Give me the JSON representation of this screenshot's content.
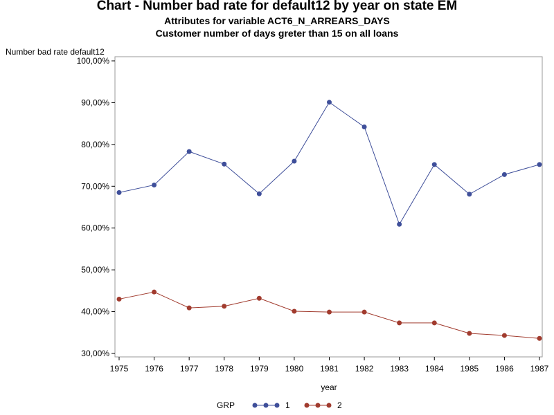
{
  "chart_data": {
    "type": "line",
    "title": "Chart - Number bad rate for default12 by year on state EM",
    "subtitle_1": "Attributes for variable ACT6_N_ARREARS_DAYS",
    "subtitle_2": "Customer number of days greter than 15 on all loans",
    "ylabel": "Number bad rate default12",
    "xlabel": "year",
    "x": [
      1975,
      1976,
      1977,
      1978,
      1979,
      1980,
      1981,
      1982,
      1983,
      1984,
      1985,
      1986,
      1987
    ],
    "xlim": [
      1975,
      1987
    ],
    "ylim": [
      30,
      100
    ],
    "y_ticks": [
      30,
      40,
      50,
      60,
      70,
      80,
      90,
      100
    ],
    "y_tick_labels": [
      "30,00%",
      "40,00%",
      "50,00%",
      "60,00%",
      "70,00%",
      "80,00%",
      "90,00%",
      "100,00%"
    ],
    "grid": false,
    "legend_title": "GRP",
    "legend_placement": "bottom",
    "series": [
      {
        "name": "1",
        "color": "#3f4f9a",
        "values": [
          68.5,
          70.3,
          78.3,
          75.3,
          68.2,
          76.0,
          90.1,
          84.2,
          60.9,
          75.2,
          68.1,
          72.8,
          75.2
        ]
      },
      {
        "name": "2",
        "color": "#a13b2e",
        "values": [
          43.0,
          44.7,
          40.9,
          41.3,
          43.2,
          40.1,
          39.9,
          39.9,
          37.3,
          37.3,
          34.8,
          34.3,
          33.6
        ]
      }
    ]
  }
}
